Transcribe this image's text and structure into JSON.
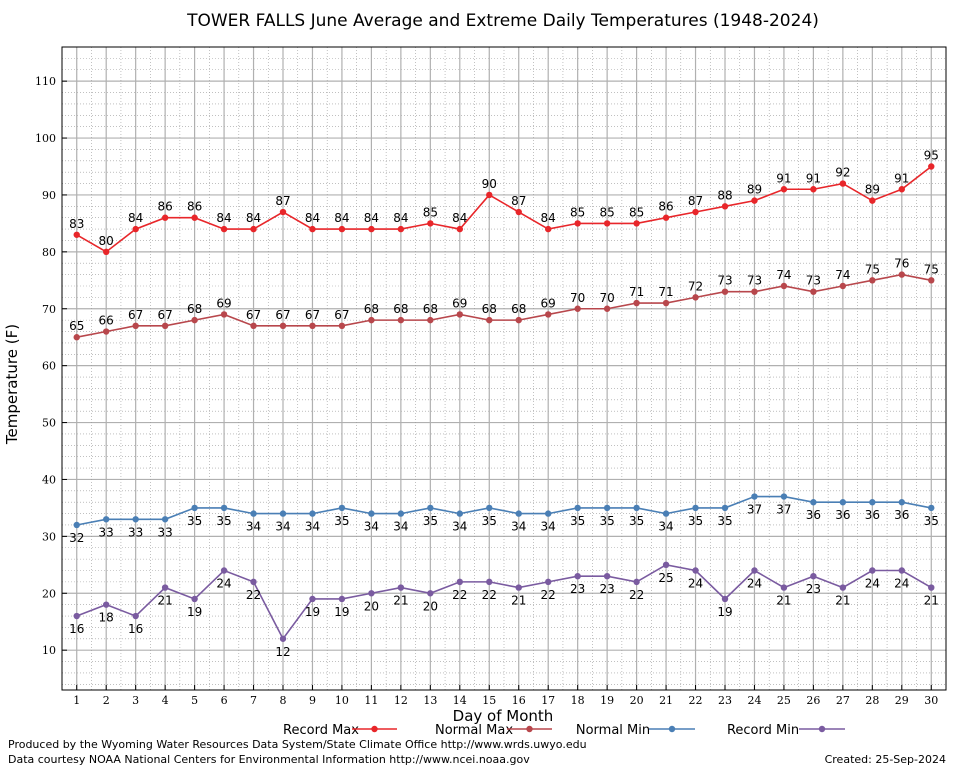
{
  "chart_data": {
    "type": "line",
    "title": "TOWER FALLS June Average and Extreme Daily Temperatures (1948-2024)",
    "xlabel": "Day of Month",
    "ylabel": "Temperature (F)",
    "x": [
      1,
      2,
      3,
      4,
      5,
      6,
      7,
      8,
      9,
      10,
      11,
      12,
      13,
      14,
      15,
      16,
      17,
      18,
      19,
      20,
      21,
      22,
      23,
      24,
      25,
      26,
      27,
      28,
      29,
      30
    ],
    "xlim": [
      0.5,
      30.5
    ],
    "ylim": [
      3,
      116
    ],
    "y_ticks": [
      10,
      20,
      30,
      40,
      50,
      60,
      70,
      80,
      90,
      100,
      110
    ],
    "grid": true,
    "legend_position": "bottom",
    "series": [
      {
        "name": "Record Max",
        "color": "#e8262a",
        "label_position": "above",
        "values": [
          83,
          80,
          84,
          86,
          86,
          84,
          84,
          87,
          84,
          84,
          84,
          84,
          85,
          84,
          90,
          87,
          84,
          85,
          85,
          85,
          86,
          87,
          88,
          89,
          91,
          91,
          92,
          89,
          91,
          95
        ]
      },
      {
        "name": "Normal Max",
        "color": "#b8474c",
        "label_position": "above",
        "values": [
          65,
          66,
          67,
          67,
          68,
          69,
          67,
          67,
          67,
          67,
          68,
          68,
          68,
          69,
          68,
          68,
          69,
          70,
          70,
          71,
          71,
          72,
          73,
          73,
          74,
          73,
          74,
          75,
          76,
          75
        ]
      },
      {
        "name": "Normal Min",
        "color": "#4a7fb5",
        "label_position": "below",
        "values": [
          32,
          33,
          33,
          33,
          35,
          35,
          34,
          34,
          34,
          35,
          34,
          34,
          35,
          34,
          35,
          34,
          34,
          35,
          35,
          35,
          34,
          35,
          35,
          37,
          37,
          36,
          36,
          36,
          36,
          35
        ]
      },
      {
        "name": "Record Min",
        "color": "#7a5ba0",
        "label_position": "below",
        "values": [
          16,
          18,
          16,
          21,
          19,
          24,
          22,
          12,
          19,
          19,
          20,
          21,
          20,
          22,
          22,
          21,
          22,
          23,
          23,
          22,
          25,
          24,
          19,
          24,
          21,
          23,
          21,
          24,
          24,
          21
        ]
      }
    ]
  },
  "footer": {
    "credit_line_1": "Produced by the Wyoming Water Resources Data System/State Climate Office http://www.wrds.uwyo.edu",
    "credit_line_2": "Data courtesy NOAA National Centers for Environmental Information http://www.ncei.noaa.gov",
    "created": "Created:  25-Sep-2024"
  }
}
